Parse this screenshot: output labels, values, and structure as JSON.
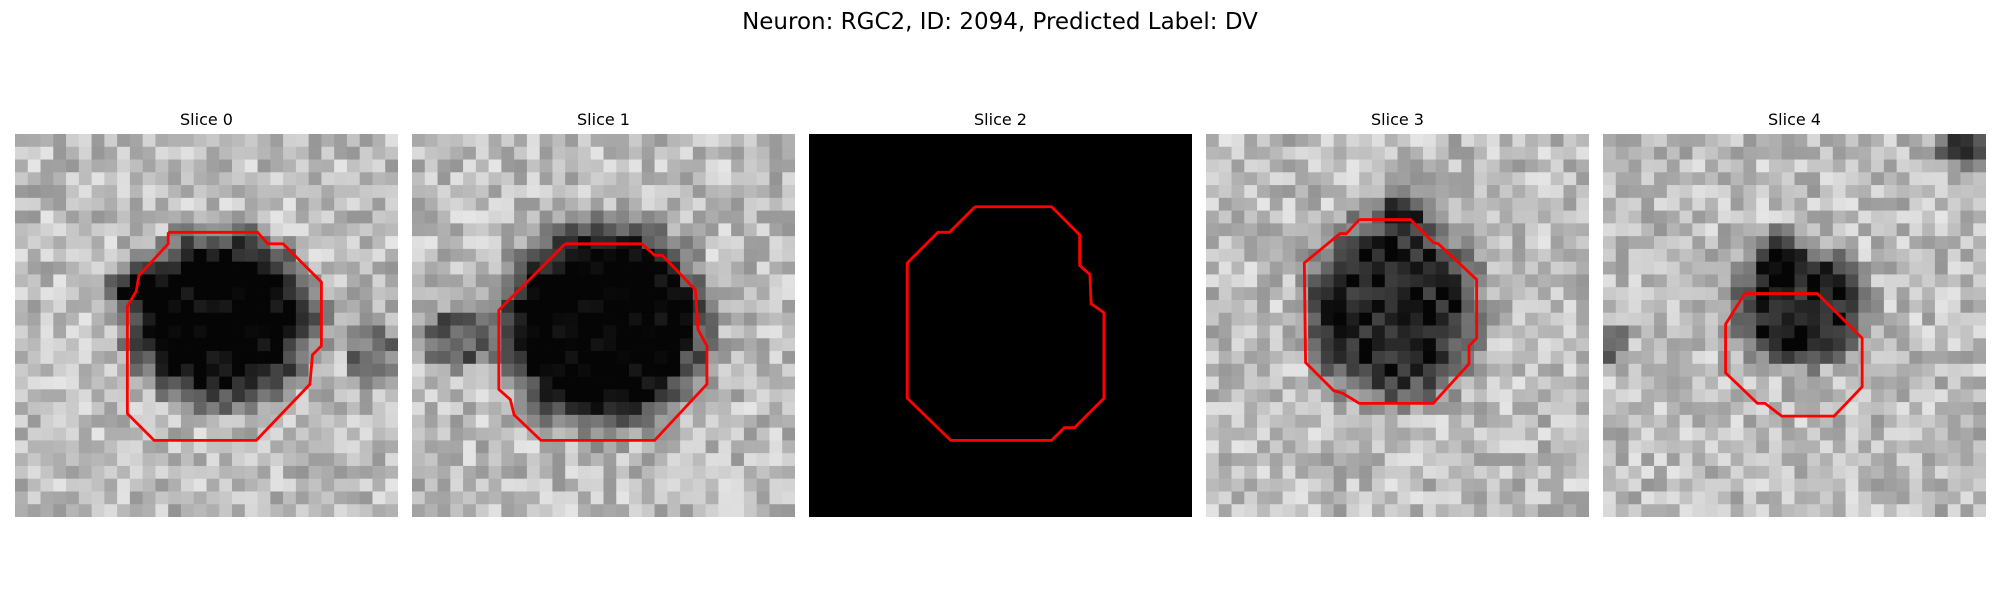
{
  "figure": {
    "title": "Neuron: RGC2, ID: 2094, Predicted Label: DV",
    "contour_color": "#ff0000"
  },
  "panels": [
    {
      "title": "Slice 0",
      "kind": "grayscale",
      "seed": 11
    },
    {
      "title": "Slice 1",
      "kind": "grayscale",
      "seed": 23
    },
    {
      "title": "Slice 2",
      "kind": "black",
      "seed": 37
    },
    {
      "title": "Slice 3",
      "kind": "grayscale",
      "seed": 41
    },
    {
      "title": "Slice 4",
      "kind": "grayscale",
      "seed": 53
    }
  ]
}
